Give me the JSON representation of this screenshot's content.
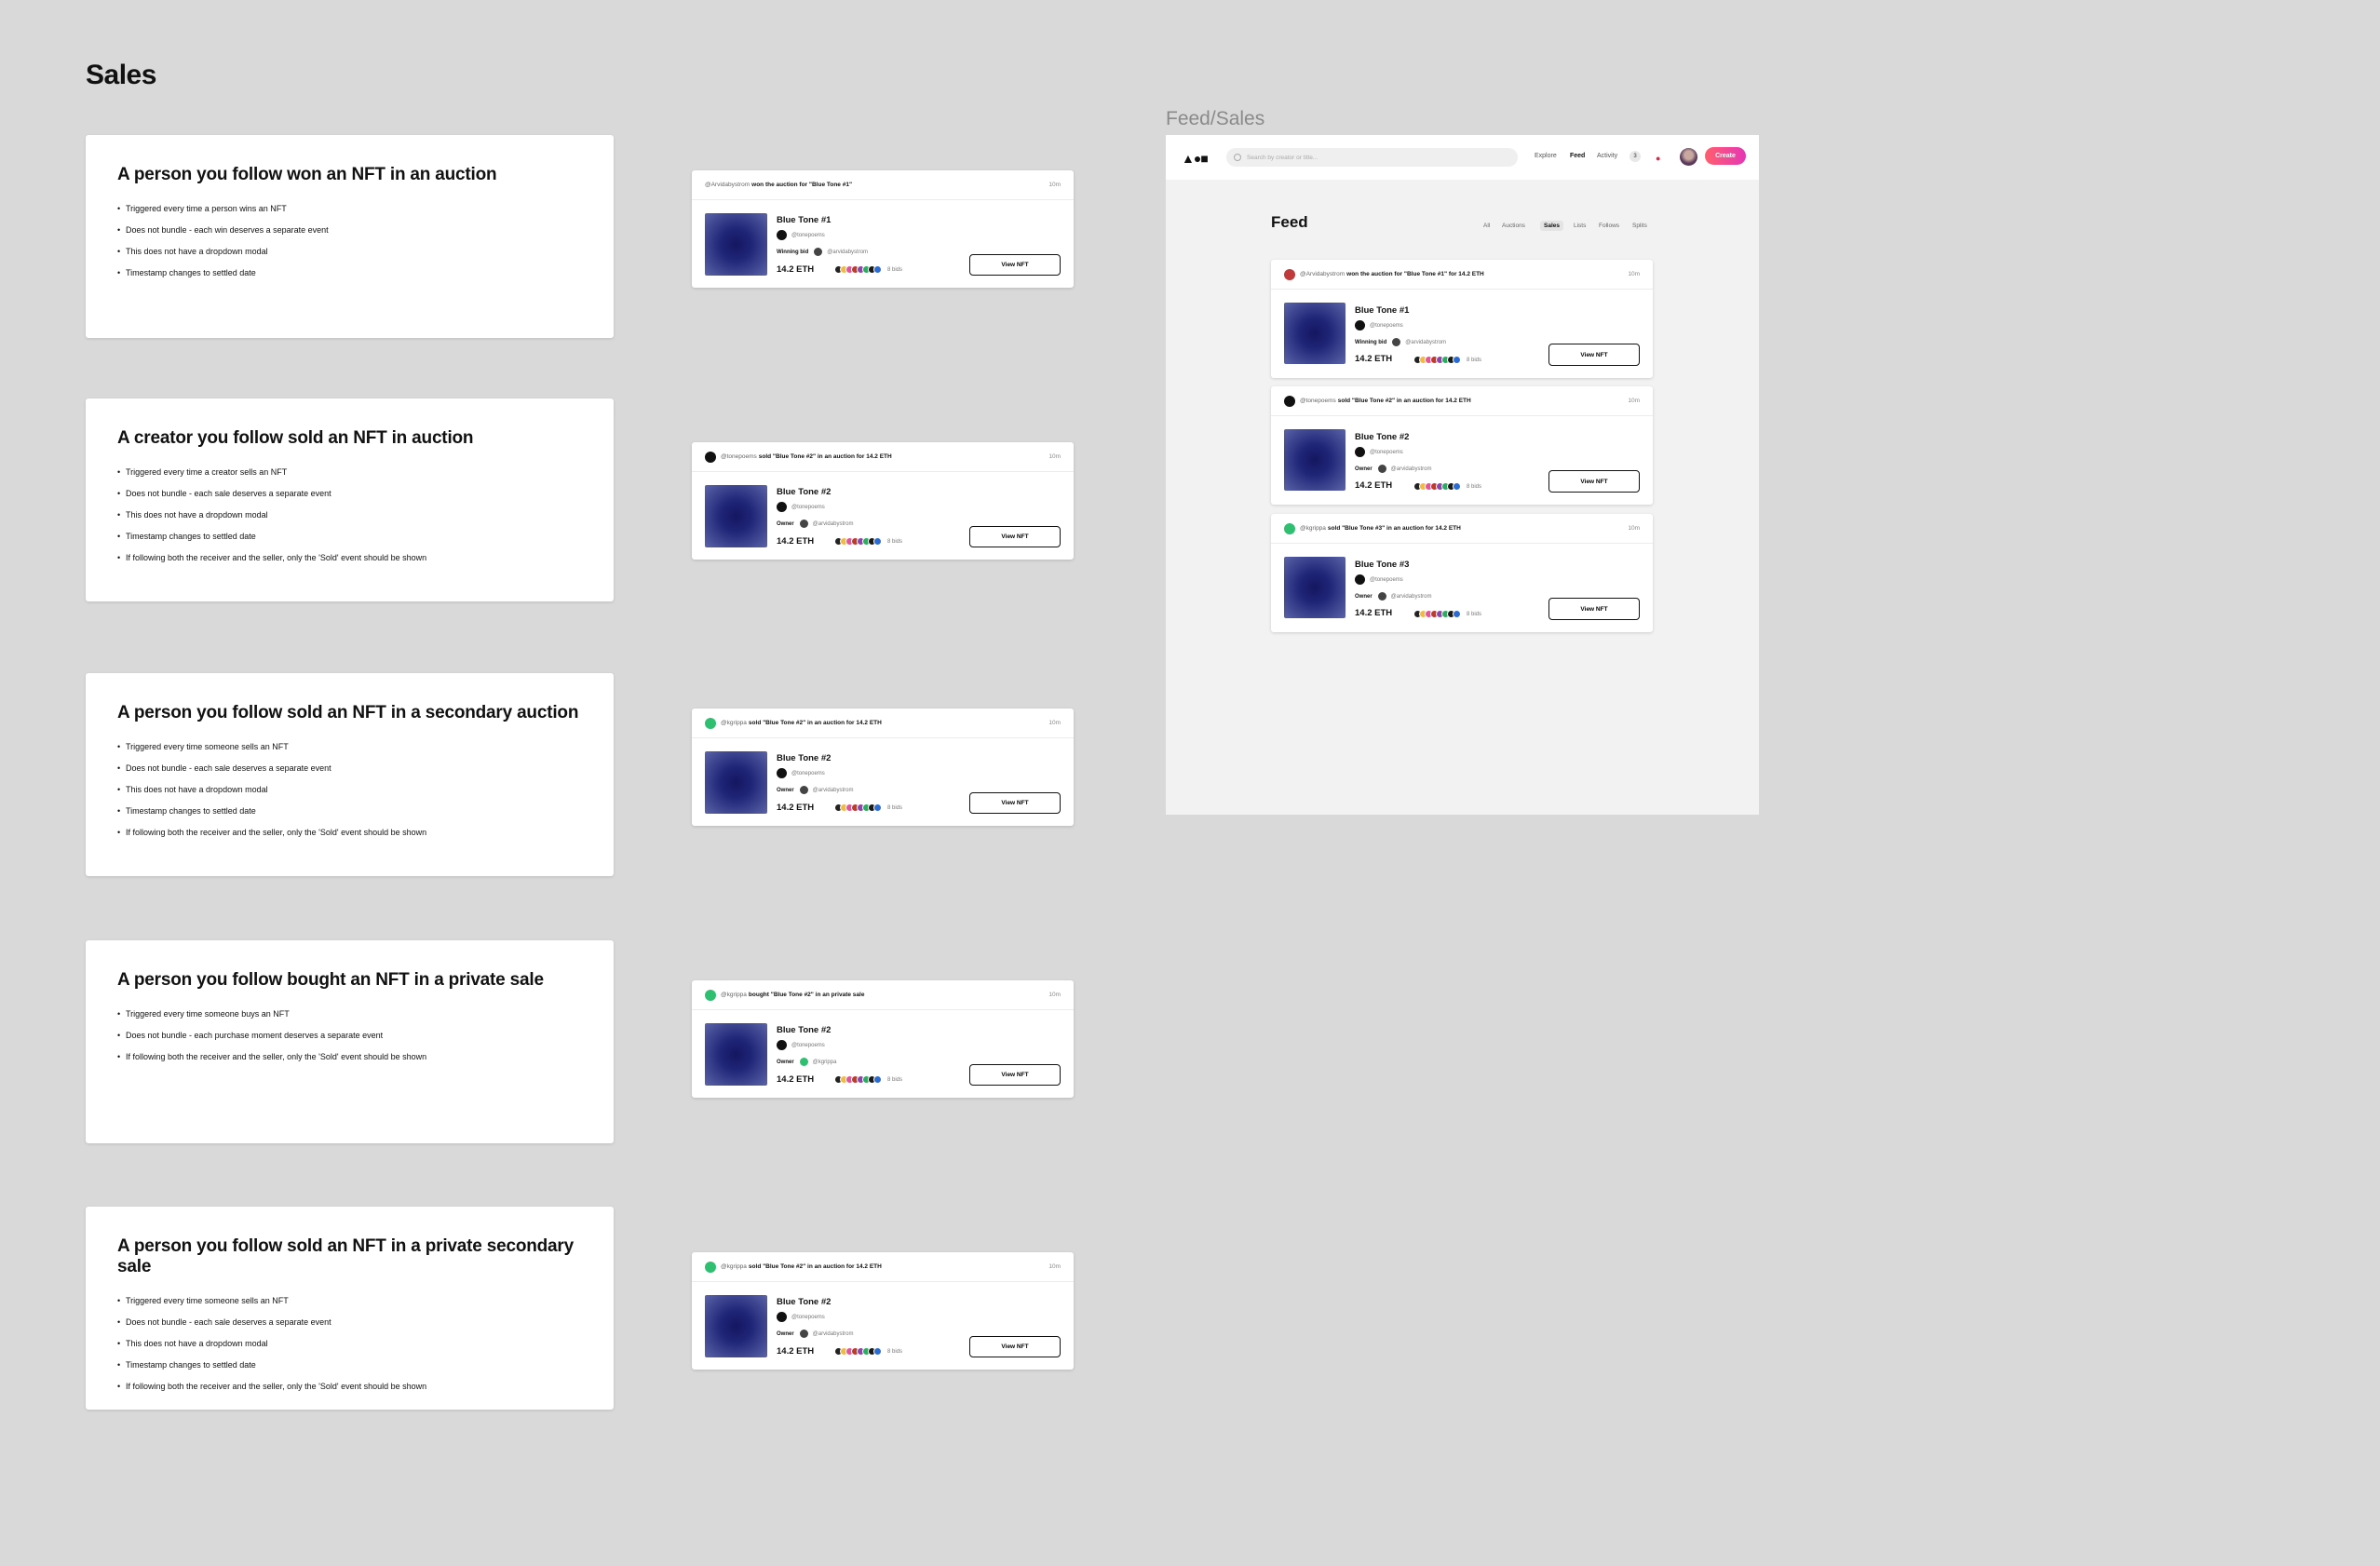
{
  "page_title": "Sales",
  "sections": [
    {
      "title": "A person you follow won an NFT in an auction",
      "bullets": [
        "Triggered every time a person wins an NFT",
        "Does not bundle - each win deserves a separate event",
        "This does not have a dropdown modal",
        "Timestamp changes to settled date"
      ],
      "card": {
        "avatar_color": "",
        "handle": "@Arvidabystrom",
        "action": "won the auction for  \"Blue Tone #1\"",
        "time": "10m",
        "nft_title": "Blue Tone #1",
        "creator": "@tonepoems",
        "meta_label": "Winning bid",
        "meta_handle": "@arvidabystrom",
        "price": "14.2 ETH",
        "bids": "8 bids",
        "button": "View NFT"
      }
    },
    {
      "title": "A creator you follow sold an NFT in auction",
      "bullets": [
        "Triggered every time a creator sells an NFT",
        "Does not bundle - each sale deserves a separate event",
        "This does not have a dropdown modal",
        "Timestamp changes to settled date",
        "If following both the receiver and the seller, only the 'Sold' event should be shown"
      ],
      "card": {
        "avatar_color": "#111111",
        "handle": "@tonepoems",
        "action": "sold \"Blue Tone #2\"  in an auction for 14.2 ETH",
        "time": "10m",
        "nft_title": "Blue Tone #2",
        "creator": "@tonepoems",
        "meta_label": "Owner",
        "meta_handle": "@arvidabystrom",
        "price": "14.2 ETH",
        "bids": "8 bids",
        "button": "View NFT"
      }
    },
    {
      "title": "A person you follow sold an NFT in a secondary auction",
      "bullets": [
        "Triggered every time someone sells an NFT",
        "Does not bundle - each sale deserves a separate event",
        "This does not have a dropdown modal",
        "Timestamp changes to settled date",
        "If following both the receiver and the seller, only the 'Sold' event should be shown"
      ],
      "card": {
        "avatar_color": "#2fbf71",
        "handle": "@kgrippa",
        "action": "sold \"Blue Tone #2\"  in an auction for 14.2 ETH",
        "time": "10m",
        "nft_title": "Blue Tone #2",
        "creator": "@tonepoems",
        "meta_label": "Owner",
        "meta_handle": "@arvidabystrom",
        "price": "14.2 ETH",
        "bids": "8 bids",
        "button": "View NFT"
      }
    },
    {
      "title": "A person you follow bought an NFT in a private sale",
      "bullets": [
        "Triggered every time someone buys an NFT",
        "Does not bundle - each purchase moment deserves a separate event",
        "If following both the receiver and the seller, only the 'Sold' event should be shown"
      ],
      "card": {
        "avatar_color": "#2fbf71",
        "handle": "@kgrippa",
        "action": "bought \"Blue Tone #2\"  in an private sale",
        "time": "10m",
        "nft_title": "Blue Tone #2",
        "creator": "@tonepoems",
        "meta_label": "Owner",
        "meta_handle": "@kgrippa",
        "meta_green": true,
        "price": "14.2 ETH",
        "bids": "8 bids",
        "button": "View NFT"
      }
    },
    {
      "title": "A person you follow sold an NFT in a private secondary sale",
      "bullets": [
        "Triggered every time someone sells an NFT",
        "Does not bundle - each sale deserves a separate event",
        "This does not have a dropdown modal",
        "Timestamp changes to settled date",
        "If following both the receiver and the seller, only the 'Sold' event should be shown"
      ],
      "card": {
        "avatar_color": "#2fbf71",
        "handle": "@kgrippa",
        "action": "sold \"Blue Tone #2\"  in an auction for 14.2 ETH",
        "time": "10m",
        "nft_title": "Blue Tone #2",
        "creator": "@tonepoems",
        "meta_label": "Owner",
        "meta_handle": "@arvidabystrom",
        "price": "14.2 ETH",
        "bids": "8 bids",
        "button": "View NFT"
      }
    }
  ],
  "frame": {
    "label": "Feed/Sales",
    "logo": "▲●■",
    "search_placeholder": "Search by creator or title...",
    "nav": [
      "Explore",
      "Feed",
      "Activity"
    ],
    "activity_count": "3",
    "create_label": "Create",
    "feed_title": "Feed",
    "tabs": [
      "All",
      "Auctions",
      "Sales",
      "Lists",
      "Follows",
      "Splits"
    ],
    "active_tab": "Sales",
    "cards": [
      {
        "avatar_color": "#c0393b",
        "handle": "@Arvidabystrom",
        "action": "won the auction for  \"Blue Tone #1\"  for 14.2 ETH",
        "time": "10m",
        "nft_title": "Blue Tone #1",
        "creator": "@tonepoems",
        "meta_label": "Winning bid",
        "meta_handle": "@arvidabystrom",
        "price": "14.2 ETH",
        "bids": "8 bids",
        "button": "View NFT"
      },
      {
        "avatar_color": "#111111",
        "handle": "@tonepoems",
        "action": "sold \"Blue Tone #2\"  in an auction for 14.2 ETH",
        "time": "10m",
        "nft_title": "Blue Tone #2",
        "creator": "@tonepoems",
        "meta_label": "Owner",
        "meta_handle": "@arvidabystrom",
        "price": "14.2 ETH",
        "bids": "8 bids",
        "button": "View NFT"
      },
      {
        "avatar_color": "#2fbf71",
        "handle": "@kgrippa",
        "action": "sold \"Blue Tone #3\"  in an auction for 14.2 ETH",
        "time": "10m",
        "nft_title": "Blue Tone #3",
        "creator": "@tonepoems",
        "meta_label": "Owner",
        "meta_handle": "@arvidabystrom",
        "price": "14.2 ETH",
        "bids": "8 bids",
        "button": "View NFT"
      }
    ]
  },
  "bid_colors": [
    "#222222",
    "#f5b942",
    "#e5549a",
    "#c0392b",
    "#8e44ad",
    "#27ae60",
    "#1a1a1a",
    "#2b6cd4"
  ]
}
